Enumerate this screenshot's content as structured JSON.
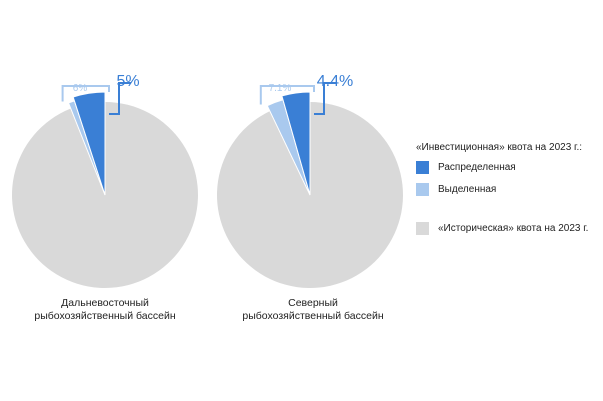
{
  "colors": {
    "distributed": "#3a7fd5",
    "allocated": "#a9c9ee",
    "historical": "#d9d9d9",
    "bracket_distributed": "#3a7fd5",
    "bracket_allocated": "#a9c9ee"
  },
  "legend": {
    "title": "«Инвестиционная» квота на 2023 г.:",
    "distributed": "Распределенная",
    "allocated": "Выделенная",
    "historical": "«Историческая» квота на 2023 г."
  },
  "chart_data": [
    {
      "type": "pie",
      "label_line1": "Дальневосточный",
      "label_line2": "рыбохозяйственный бассейн",
      "slices": [
        {
          "name": "distributed",
          "value": 5
        },
        {
          "name": "allocated",
          "value": 1
        },
        {
          "name": "historical",
          "value": 94
        }
      ],
      "labels": {
        "distributed": "5%",
        "allocated": "6%"
      }
    },
    {
      "type": "pie",
      "label_line1": "Северный",
      "label_line2": "рыбохозяйственный бассейн",
      "slices": [
        {
          "name": "distributed",
          "value": 4.4
        },
        {
          "name": "allocated",
          "value": 2.7
        },
        {
          "name": "historical",
          "value": 92.9
        }
      ],
      "labels": {
        "distributed": "4.4%",
        "allocated": "7.1%"
      }
    }
  ]
}
